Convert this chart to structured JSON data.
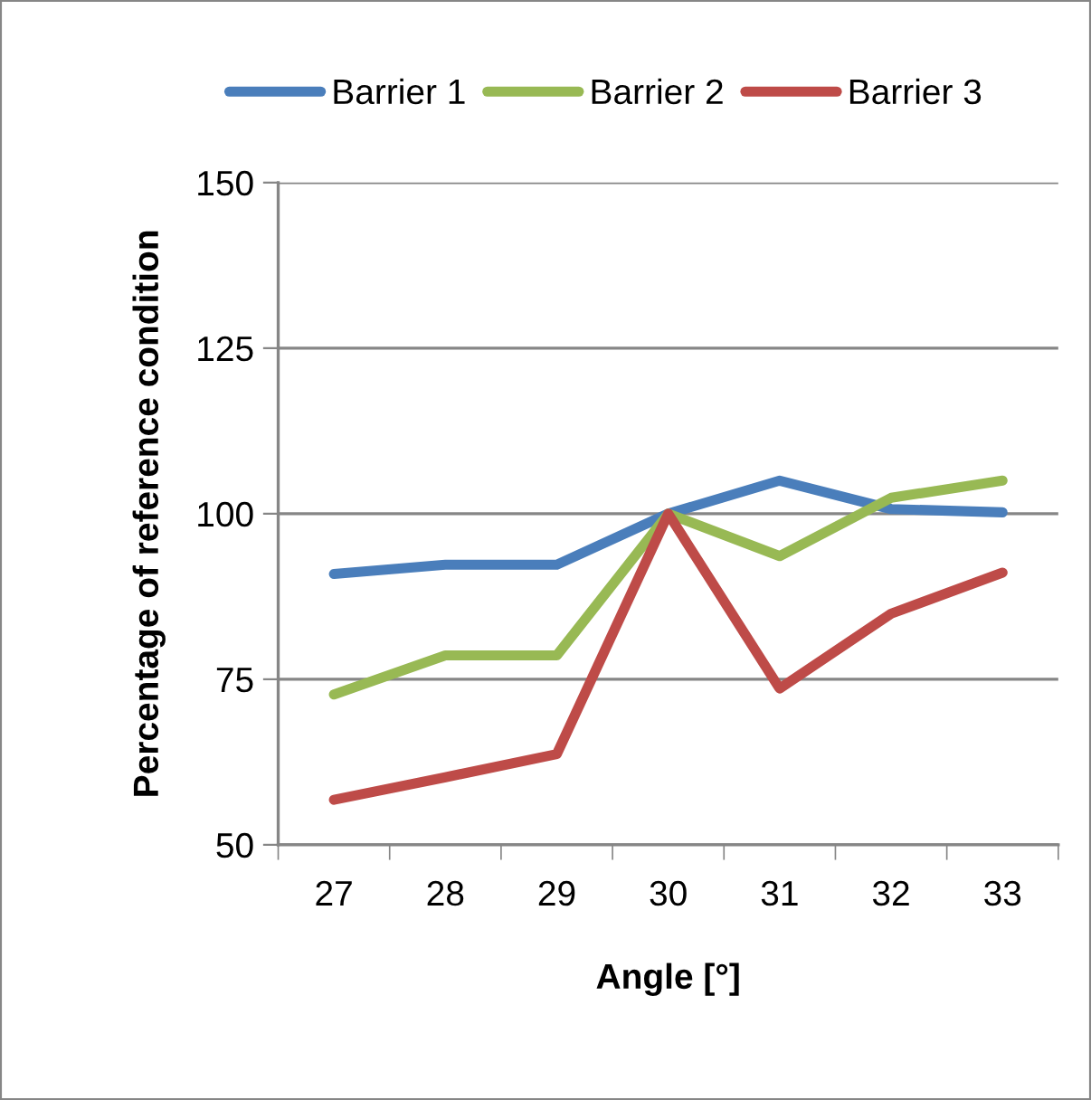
{
  "chart_data": {
    "type": "line",
    "xlabel": "Angle [°]",
    "ylabel": "Percentage of reference condition",
    "categories": [
      "27",
      "28",
      "29",
      "30",
      "31",
      "32",
      "33"
    ],
    "series": [
      {
        "name": "Barrier 1",
        "color": "#4a7ebb",
        "values": [
          90.9,
          92.3,
          92.3,
          100,
          105,
          100.7,
          100.2
        ]
      },
      {
        "name": "Barrier 2",
        "color": "#98b954",
        "values": [
          72.7,
          78.6,
          78.6,
          100,
          93.6,
          102.4,
          105
        ]
      },
      {
        "name": "Barrier 3",
        "color": "#be4b48",
        "values": [
          56.8,
          60.2,
          63.7,
          100,
          73.6,
          84.9,
          91.1
        ]
      }
    ],
    "ylim": [
      50,
      150
    ],
    "yticks": [
      50,
      75,
      100,
      125,
      150
    ],
    "grid": "y",
    "legend": "top",
    "marker": "none",
    "line_style": "solid"
  }
}
